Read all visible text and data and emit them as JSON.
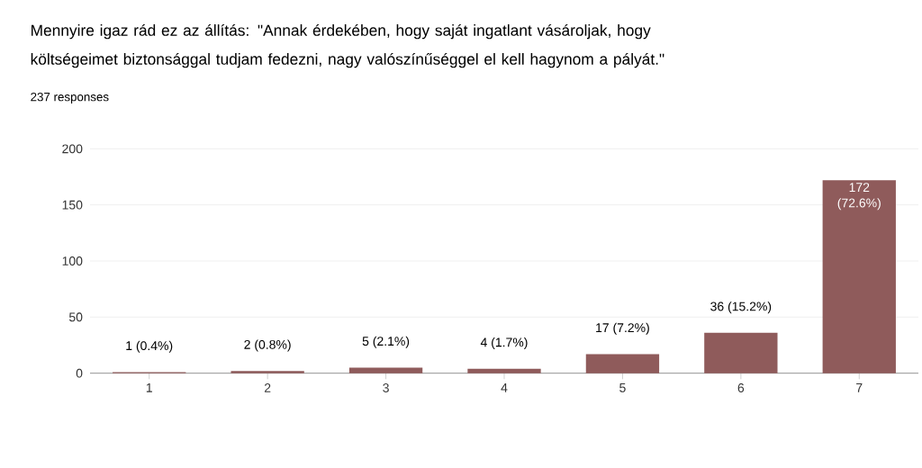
{
  "chart_data": {
    "type": "bar",
    "title": "Mennyire igaz rád ez az állítás: \"Annak érdekében, hogy saját ingatlant vásároljak, hogy költségeimet biztonsággal tudjam fedezni, nagy valószínűséggel el kell hagynom a pályát.\"",
    "subtitle": "237 responses",
    "categories": [
      "1",
      "2",
      "3",
      "4",
      "5",
      "6",
      "7"
    ],
    "values": [
      1,
      2,
      5,
      4,
      17,
      36,
      172
    ],
    "value_labels": [
      "1 (0.4%)",
      "2 (0.8%)",
      "5 (2.1%)",
      "4 (1.7%)",
      "17 (7.2%)",
      "36 (15.2%)",
      "172 (72.6%)"
    ],
    "color": "#8f5b5b",
    "ylim": [
      0,
      200
    ],
    "yticks": [
      0,
      50,
      100,
      150,
      200
    ],
    "grid": "y"
  }
}
